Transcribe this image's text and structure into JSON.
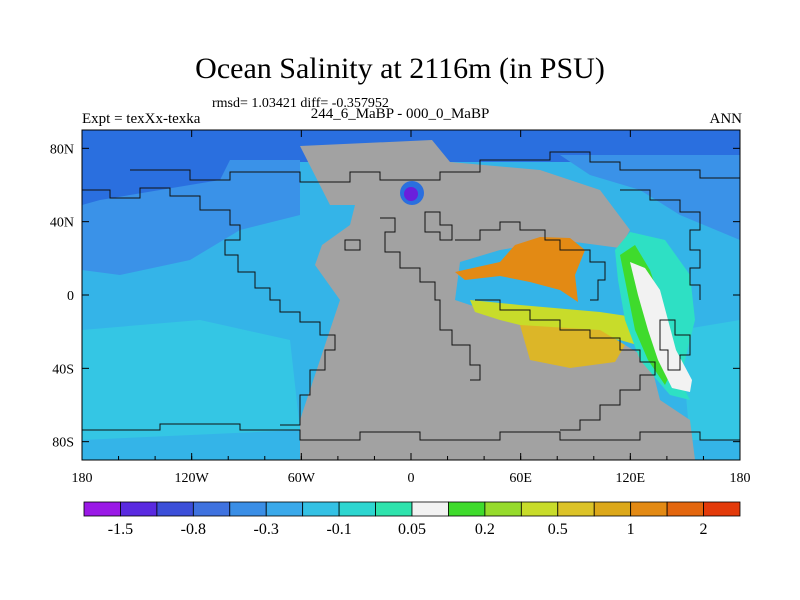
{
  "title": "Ocean Salinity at 2116m (in PSU)",
  "stats": "rmsd= 1.03421 diff= -0.357952",
  "experiment": "Expt = texXx-texka",
  "subtitle": "244_6_MaBP - 000_0_MaBP",
  "season": "ANN",
  "axes": {
    "x_ticks": [
      {
        "value": -180,
        "label": "180"
      },
      {
        "value": -120,
        "label": "120W"
      },
      {
        "value": -60,
        "label": "60W"
      },
      {
        "value": 0,
        "label": "0"
      },
      {
        "value": 60,
        "label": "60E"
      },
      {
        "value": 120,
        "label": "120E"
      },
      {
        "value": 180,
        "label": "180"
      }
    ],
    "y_ticks": [
      {
        "value": 80,
        "label": "80N"
      },
      {
        "value": 40,
        "label": "40N"
      },
      {
        "value": 0,
        "label": "0"
      },
      {
        "value": -40,
        "label": "40S"
      },
      {
        "value": -80,
        "label": "80S"
      }
    ],
    "lon_range": [
      -180,
      180
    ],
    "lat_range": [
      -90,
      90
    ]
  },
  "colorbar": {
    "colors": [
      "#9a19e6",
      "#5a2ae0",
      "#3c4fd9",
      "#3f72df",
      "#3a8ee6",
      "#3aa9ea",
      "#34c1e4",
      "#2dd6d0",
      "#2ee3ad",
      "#f2f2f2",
      "#3fdb2c",
      "#96db2c",
      "#c8dc2a",
      "#dcc328",
      "#dca81a",
      "#e38a14",
      "#e3660e",
      "#e33a0a"
    ],
    "labels": [
      {
        "boundary": 1,
        "text": "-1.5"
      },
      {
        "boundary": 3,
        "text": "-0.8"
      },
      {
        "boundary": 5,
        "text": "-0.3"
      },
      {
        "boundary": 7,
        "text": "-0.1"
      },
      {
        "boundary": 9,
        "text": "0.05"
      },
      {
        "boundary": 11,
        "text": "0.2"
      },
      {
        "boundary": 13,
        "text": "0.5"
      },
      {
        "boundary": 15,
        "text": "1"
      },
      {
        "boundary": 17,
        "text": "2"
      }
    ]
  },
  "map_colors": {
    "land": "#a2a2a2",
    "deep_blue": "#2a6fdf",
    "mid_blue": "#3a92e8",
    "light_blue": "#34b4e8",
    "cyan": "#34c6e4",
    "teal": "#2ee0c4",
    "green": "#3fdb2c",
    "white": "#f2f2f2",
    "yellow": "#c8dc2a",
    "gold": "#dcb628",
    "orange": "#e38a14",
    "purple": "#6a1fdc",
    "coast": "#111111"
  }
}
